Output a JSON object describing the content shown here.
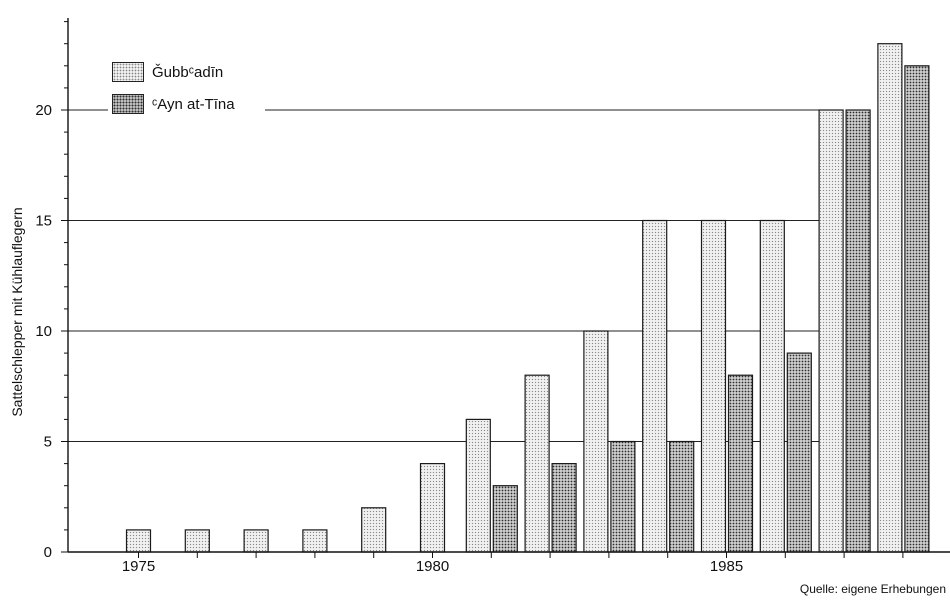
{
  "chart_data": {
    "type": "bar",
    "ylabel": "Sattelschlepper mit Kühlauflegern",
    "xlabel": "",
    "ylim": [
      0,
      24
    ],
    "yticks": [
      0,
      5,
      10,
      15,
      20
    ],
    "xtick_labels": [
      {
        "label": "1975",
        "year": 1975
      },
      {
        "label": "1980",
        "year": 1980
      },
      {
        "label": "1985",
        "year": 1985
      }
    ],
    "categories": [
      1975,
      1976,
      1977,
      1978,
      1979,
      1980,
      1981,
      1982,
      1983,
      1984,
      1985,
      1986,
      1987,
      1988
    ],
    "series": [
      {
        "name": "Ǧubbᶜadīn",
        "values": [
          1,
          1,
          1,
          1,
          2,
          4,
          6,
          8,
          10,
          15,
          15,
          15,
          20,
          23
        ],
        "color": "#efefef"
      },
      {
        "name": "ᶜAyn at-Tīna",
        "values": [
          0,
          0,
          0,
          0,
          0,
          0,
          3,
          4,
          5,
          5,
          8,
          9,
          20,
          22
        ],
        "color": "#c8c8c8"
      }
    ],
    "grid": true,
    "legend_position": "top-left",
    "source": "Quelle: eigene Erhebungen"
  }
}
